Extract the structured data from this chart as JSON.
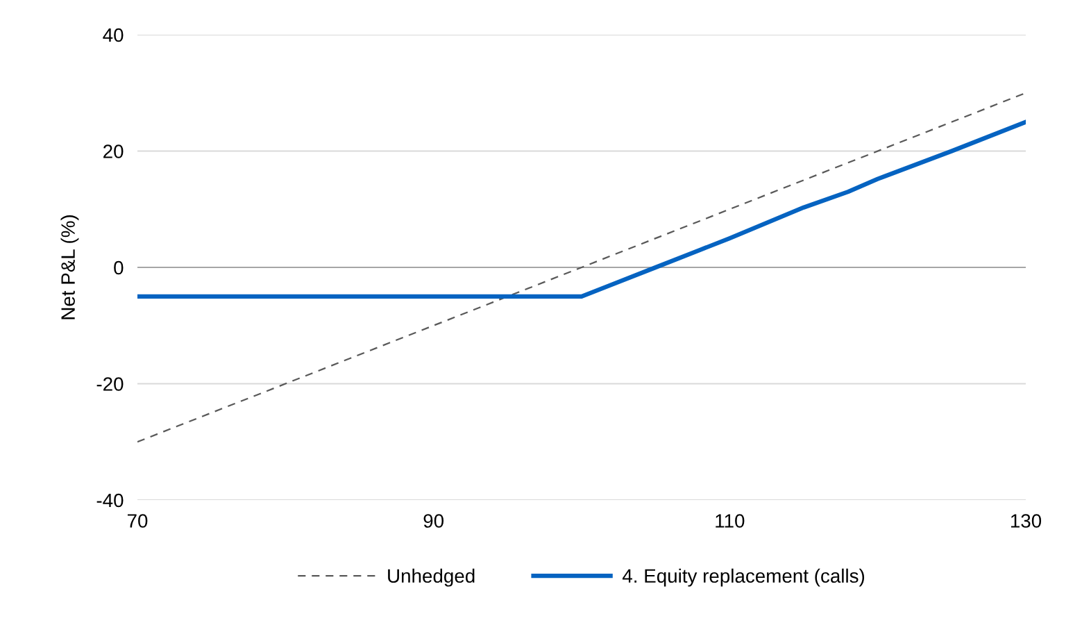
{
  "chart_data": {
    "type": "line",
    "ylabel": "Net P&L (%)",
    "xlim": [
      70,
      130
    ],
    "xticks": [
      70,
      90,
      110,
      130
    ],
    "ylim": [
      -40,
      40
    ],
    "yticks": [
      -40,
      -20,
      0,
      20,
      40
    ],
    "grid": "y",
    "legend": "bottom",
    "ref_lines": [
      {
        "axis": "y",
        "value": 0,
        "color": "#a6a6a6"
      }
    ],
    "series": [
      {
        "name": "Unhedged",
        "color": "#595959",
        "line_style": "dashed",
        "x": [
          70,
          130
        ],
        "values": [
          -30,
          30
        ]
      },
      {
        "name": "4. Equity replacement (calls)",
        "color": "#0563c1",
        "line_style": "solid",
        "x": [
          70,
          100,
          102,
          105,
          108,
          110,
          115,
          118,
          120,
          125,
          130
        ],
        "values": [
          -5,
          -5,
          -3,
          0,
          3,
          5,
          10.3,
          13,
          15.2,
          20,
          25
        ]
      }
    ]
  }
}
